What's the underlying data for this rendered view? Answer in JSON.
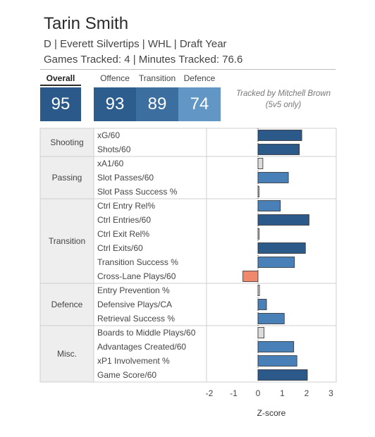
{
  "player": {
    "name": "Tarin Smith",
    "info": "D | Everett Silvertips | WHL | Draft Year",
    "games_line": "Games Tracked: 4 | Minutes Tracked: 76.6"
  },
  "scores": {
    "overall": {
      "label": "Overall",
      "value": "95",
      "color": "#2b5a8a"
    },
    "offence": {
      "label": "Offence",
      "value": "93",
      "color": "#2d5d8d"
    },
    "transition": {
      "label": "Transition",
      "value": "89",
      "color": "#3c6f9f"
    },
    "defence": {
      "label": "Defence",
      "value": "74",
      "color": "#6297c5"
    }
  },
  "tracked_by": [
    "Tracked by Mitchell Brown",
    "(5v5 only)"
  ],
  "chart_data": {
    "type": "bar",
    "orientation": "horizontal",
    "xlabel": "Z-score",
    "xlim": [
      -2.2,
      3.1
    ],
    "xticks": [
      -2,
      -1,
      0,
      1,
      2,
      3
    ],
    "categories": [
      "Shooting",
      "Passing",
      "Transition",
      "Defence",
      "Misc."
    ],
    "metrics": [
      {
        "category": "Shooting",
        "label": "xG/60",
        "value": 1.8
      },
      {
        "category": "Shooting",
        "label": "Shots/60",
        "value": 1.7
      },
      {
        "category": "Passing",
        "label": "xA1/60",
        "value": 0.2
      },
      {
        "category": "Passing",
        "label": "Slot Passes/60",
        "value": 1.25
      },
      {
        "category": "Passing",
        "label": "Slot Pass Success %",
        "value": 0.03
      },
      {
        "category": "Transition",
        "label": "Ctrl Entry Rel%",
        "value": 0.92
      },
      {
        "category": "Transition",
        "label": "Ctrl Entries/60",
        "value": 2.1
      },
      {
        "category": "Transition",
        "label": "Ctrl Exit Rel%",
        "value": 0.05
      },
      {
        "category": "Transition",
        "label": "Ctrl Exits/60",
        "value": 1.95
      },
      {
        "category": "Transition",
        "label": "Transition Success %",
        "value": 1.5
      },
      {
        "category": "Transition",
        "label": "Cross-Lane Plays/60",
        "value": -0.62
      },
      {
        "category": "Defence",
        "label": "Entry Prevention %",
        "value": 0.06
      },
      {
        "category": "Defence",
        "label": "Defensive Plays/CA",
        "value": 0.35
      },
      {
        "category": "Defence",
        "label": "Retrieval Success %",
        "value": 1.08
      },
      {
        "category": "Misc.",
        "label": "Boards to Middle Plays/60",
        "value": 0.25
      },
      {
        "category": "Misc.",
        "label": "Advantages Created/60",
        "value": 1.47
      },
      {
        "category": "Misc.",
        "label": "xP1 Involvement %",
        "value": 1.6
      },
      {
        "category": "Misc.",
        "label": "Game Score/60",
        "value": 2.03
      }
    ],
    "colors": {
      "strong_positive": "#2b5a8a",
      "positive": "#4a80b8",
      "near_zero": "#dcdcdc",
      "negative": "#f0896c"
    }
  }
}
